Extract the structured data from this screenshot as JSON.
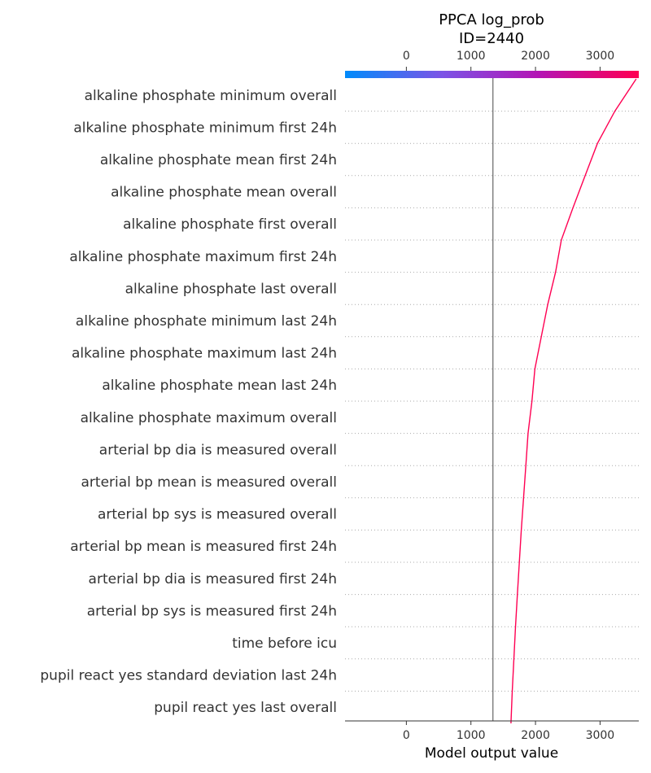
{
  "chart_data": {
    "type": "line",
    "title_lines": [
      "PPCA log_prob",
      "ID=2440"
    ],
    "xlabel": "Model output value",
    "xlim": [
      -950,
      3600
    ],
    "xticks": [
      0,
      1000,
      2000,
      3000
    ],
    "xtick_labels": [
      "0",
      "1000",
      "2000",
      "3000"
    ],
    "base_value": 1340,
    "final_value": 3560,
    "features": [
      "alkaline phosphate  minimum  overall",
      "alkaline phosphate  minimum  first 24h",
      "alkaline phosphate  mean  first 24h",
      "alkaline phosphate  mean  overall",
      "alkaline phosphate  first  overall",
      "alkaline phosphate  maximum  first 24h",
      "alkaline phosphate  last  overall",
      "alkaline phosphate  minimum  last 24h",
      "alkaline phosphate  maximum  last 24h",
      "alkaline phosphate  mean  last 24h",
      "alkaline phosphate  maximum  overall",
      "arterial bp dia  is measured  overall",
      "arterial bp mean  is measured  overall",
      "arterial bp sys  is measured  overall",
      "arterial bp mean  is measured  first 24h",
      "arterial bp dia  is measured  first 24h",
      "arterial bp sys  is measured  first 24h",
      "time before icu",
      "pupil react yes  standard deviation  last 24h",
      "pupil react yes  last  overall"
    ],
    "path_values": [
      1620,
      1640,
      1665,
      1690,
      1720,
      1750,
      1780,
      1815,
      1850,
      1885,
      1945,
      1990,
      2090,
      2190,
      2310,
      2400,
      2580,
      2770,
      2960,
      3230,
      3560
    ],
    "colorbar": {
      "min": 0,
      "max": 3600,
      "colors": [
        "#008bfb",
        "#7c54e6",
        "#b414b4",
        "#ff0052"
      ]
    },
    "line_color": "#ff0052",
    "base_line_color": "#808080"
  }
}
